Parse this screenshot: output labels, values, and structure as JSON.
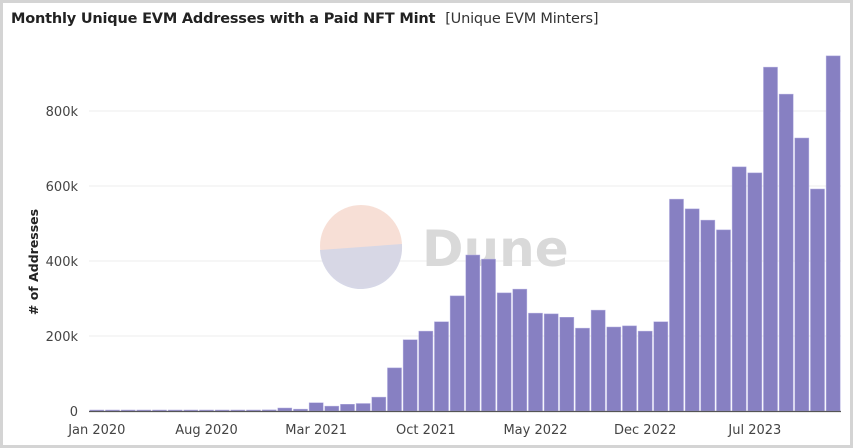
{
  "chart_data": {
    "type": "bar",
    "title": "Monthly Unique EVM Addresses with a Paid NFT Mint",
    "subtitle": "[Unique EVM Minters]",
    "xlabel": "",
    "ylabel": "# of Addresses",
    "ylim": [
      0,
      960000
    ],
    "yticks": [
      0,
      200000,
      400000,
      600000,
      800000
    ],
    "ytick_labels": [
      "0",
      "200k",
      "400k",
      "600k",
      "800k"
    ],
    "xtick_labels": [
      "Jan 2020",
      "Aug 2020",
      "Mar 2021",
      "Oct 2021",
      "May 2022",
      "Dec 2022",
      "Jul 2023"
    ],
    "grid": true,
    "bar_color": "#8780c2",
    "categories": [
      "2020-01",
      "2020-02",
      "2020-03",
      "2020-04",
      "2020-05",
      "2020-06",
      "2020-07",
      "2020-08",
      "2020-09",
      "2020-10",
      "2020-11",
      "2020-12",
      "2021-01",
      "2021-02",
      "2021-03",
      "2021-04",
      "2021-05",
      "2021-06",
      "2021-07",
      "2021-08",
      "2021-09",
      "2021-10",
      "2021-11",
      "2021-12",
      "2022-01",
      "2022-02",
      "2022-03",
      "2022-04",
      "2022-05",
      "2022-06",
      "2022-07",
      "2022-08",
      "2022-09",
      "2022-10",
      "2022-11",
      "2022-12",
      "2023-01",
      "2023-02",
      "2023-03",
      "2023-04",
      "2023-05",
      "2023-06",
      "2023-07",
      "2023-08",
      "2023-09",
      "2023-10",
      "2023-11",
      "2023-12"
    ],
    "values": [
      1000,
      1000,
      1000,
      1500,
      2000,
      2000,
      2000,
      1500,
      1500,
      1500,
      2500,
      3000,
      8000,
      5000,
      22000,
      13000,
      18000,
      20000,
      37000,
      115000,
      190000,
      213000,
      238000,
      307000,
      416000,
      405000,
      315000,
      325000,
      261000,
      259000,
      250000,
      221000,
      269000,
      224000,
      227000,
      213000,
      238000,
      565000,
      539000,
      509000,
      483000,
      651000,
      635000,
      917000,
      845000,
      728000,
      592000,
      947000
    ]
  },
  "watermark": "Dune"
}
